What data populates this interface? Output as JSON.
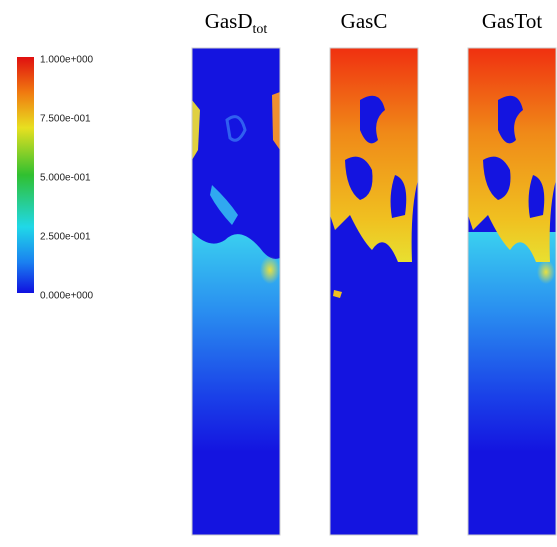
{
  "colorbar": {
    "labels": [
      "1.000e+000",
      "7.500e-001",
      "5.000e-001",
      "2.500e-001",
      "0.000e+000"
    ]
  },
  "panels": [
    {
      "title": "GasD",
      "subscript": "tot"
    },
    {
      "title": "GasC"
    },
    {
      "title": "GasTot"
    }
  ]
}
